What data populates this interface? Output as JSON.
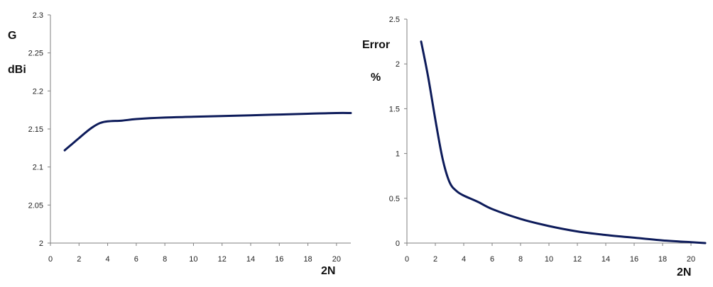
{
  "chart_data": [
    {
      "type": "line",
      "title": "",
      "ylabel_lines": [
        "G",
        "dBi"
      ],
      "xlabel": "2N",
      "xlim": [
        0,
        21
      ],
      "ylim": [
        2.0,
        2.3
      ],
      "xticks": [
        0,
        2,
        4,
        6,
        8,
        10,
        12,
        14,
        16,
        18,
        20
      ],
      "yticks": [
        "2",
        "2.05",
        "2.1",
        "2.15",
        "2.2",
        "2.25",
        "2.3"
      ],
      "grid": false,
      "series": [
        {
          "color": "#0d1b5a",
          "x": [
            1,
            1.5,
            2,
            2.5,
            3,
            3.5,
            4,
            5,
            6,
            8,
            10,
            12,
            14,
            16,
            18,
            20,
            21
          ],
          "y": [
            2.122,
            2.13,
            2.138,
            2.146,
            2.153,
            2.158,
            2.16,
            2.161,
            2.163,
            2.165,
            2.166,
            2.167,
            2.168,
            2.169,
            2.17,
            2.171,
            2.171
          ]
        }
      ]
    },
    {
      "type": "line",
      "title": "",
      "ylabel_lines": [
        "Error",
        "%"
      ],
      "xlabel": "2N",
      "xlim": [
        0,
        21
      ],
      "ylim": [
        0,
        2.5
      ],
      "xticks": [
        0,
        2,
        4,
        6,
        8,
        10,
        12,
        14,
        16,
        18,
        20
      ],
      "yticks": [
        "0",
        "0.5",
        "1",
        "1.5",
        "2",
        "2.5"
      ],
      "grid": false,
      "series": [
        {
          "color": "#0d1b5a",
          "x": [
            1,
            1.5,
            2,
            2.5,
            3,
            3.5,
            4,
            5,
            6,
            8,
            10,
            12,
            14,
            16,
            18,
            20,
            21
          ],
          "y": [
            2.25,
            1.85,
            1.38,
            0.95,
            0.68,
            0.58,
            0.53,
            0.46,
            0.38,
            0.27,
            0.19,
            0.13,
            0.09,
            0.06,
            0.03,
            0.01,
            0.0
          ]
        }
      ]
    }
  ]
}
